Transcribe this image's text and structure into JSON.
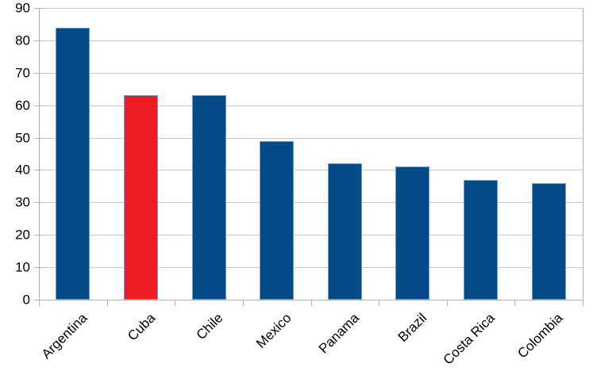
{
  "chart_data": {
    "type": "bar",
    "title": "",
    "xlabel": "",
    "ylabel": "",
    "categories": [
      "Argentina",
      "Cuba",
      "Chile",
      "Mexico",
      "Panama",
      "Brazil",
      "Costa Rica",
      "Colombia"
    ],
    "values": [
      84,
      63,
      63,
      49,
      42,
      41,
      37,
      36
    ],
    "bar_colors": [
      "#044B87",
      "#EC1C24",
      "#044B87",
      "#044B87",
      "#044B87",
      "#044B87",
      "#044B87",
      "#044B87"
    ],
    "default_bar_color": "#044B87",
    "highlight": {
      "category": "Cuba",
      "color": "#EC1C24"
    },
    "bar_border_color": "#6E9ECF",
    "ylim": [
      0,
      90
    ],
    "yticks": [
      0,
      10,
      20,
      30,
      40,
      50,
      60,
      70,
      80,
      90
    ],
    "ytick_labels": [
      "0",
      "10",
      "20",
      "30",
      "40",
      "50",
      "60",
      "70",
      "80",
      "90"
    ],
    "grid": true,
    "gridline_color": "#C8C8C8",
    "axis_line_color": "#B2B2B2",
    "x_label_rotation_deg": -45,
    "legend": "none",
    "background_color": "#FFFFFF"
  }
}
